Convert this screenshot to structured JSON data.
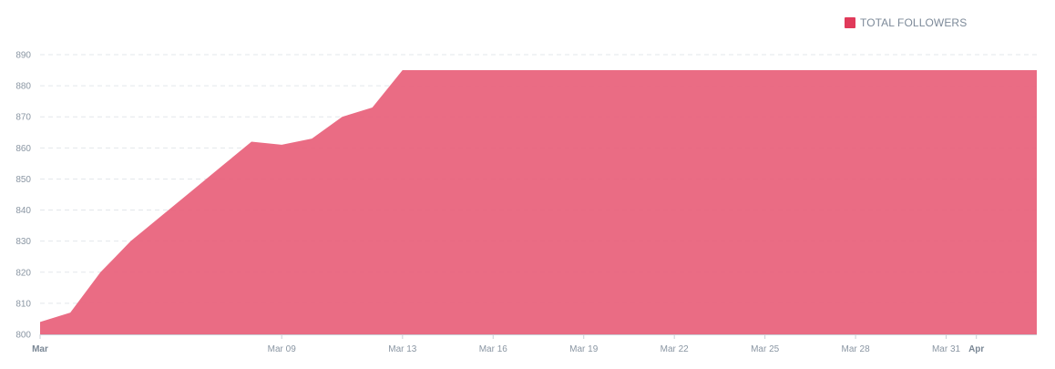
{
  "chart_data": {
    "type": "area",
    "title": "",
    "xlabel": "",
    "ylabel": "",
    "ylim": [
      800,
      890
    ],
    "y_ticks": [
      800,
      810,
      820,
      830,
      840,
      850,
      860,
      870,
      880,
      890
    ],
    "grid": "horizontal dashed",
    "legend_position": "top-right",
    "x_range": [
      "2019-03-01",
      "2019-04-03"
    ],
    "x_ticks": [
      {
        "date": "2019-03-01",
        "label": "Mar",
        "major": true
      },
      {
        "date": "2019-03-09",
        "label": "Mar 09",
        "major": false
      },
      {
        "date": "2019-03-13",
        "label": "Mar 13",
        "major": false
      },
      {
        "date": "2019-03-16",
        "label": "Mar 16",
        "major": false
      },
      {
        "date": "2019-03-19",
        "label": "Mar 19",
        "major": false
      },
      {
        "date": "2019-03-22",
        "label": "Mar 22",
        "major": false
      },
      {
        "date": "2019-03-25",
        "label": "Mar 25",
        "major": false
      },
      {
        "date": "2019-03-28",
        "label": "Mar 28",
        "major": false
      },
      {
        "date": "2019-03-31",
        "label": "Mar 31",
        "major": false
      },
      {
        "date": "2019-04-01",
        "label": "Apr",
        "major": true
      }
    ],
    "series": [
      {
        "name": "TOTAL FOLLOWERS",
        "color": "#e8607a",
        "legend_color": "#e03a5a",
        "points": [
          {
            "x": "2019-03-01",
            "y": 804
          },
          {
            "x": "2019-03-02",
            "y": 807
          },
          {
            "x": "2019-03-03",
            "y": 820
          },
          {
            "x": "2019-03-04",
            "y": 830
          },
          {
            "x": "2019-03-05",
            "y": 838
          },
          {
            "x": "2019-03-06",
            "y": 846
          },
          {
            "x": "2019-03-07",
            "y": 854
          },
          {
            "x": "2019-03-08",
            "y": 862
          },
          {
            "x": "2019-03-09",
            "y": 861
          },
          {
            "x": "2019-03-10",
            "y": 863
          },
          {
            "x": "2019-03-11",
            "y": 870
          },
          {
            "x": "2019-03-12",
            "y": 873
          },
          {
            "x": "2019-03-13",
            "y": 885
          },
          {
            "x": "2019-03-14",
            "y": 885
          },
          {
            "x": "2019-03-15",
            "y": 885
          },
          {
            "x": "2019-03-16",
            "y": 885
          },
          {
            "x": "2019-03-17",
            "y": 885
          },
          {
            "x": "2019-03-18",
            "y": 885
          },
          {
            "x": "2019-03-19",
            "y": 885
          },
          {
            "x": "2019-03-20",
            "y": 885
          },
          {
            "x": "2019-03-21",
            "y": 885
          },
          {
            "x": "2019-03-22",
            "y": 885
          },
          {
            "x": "2019-03-23",
            "y": 885
          },
          {
            "x": "2019-03-24",
            "y": 885
          },
          {
            "x": "2019-03-25",
            "y": 885
          },
          {
            "x": "2019-03-26",
            "y": 885
          },
          {
            "x": "2019-03-27",
            "y": 885
          },
          {
            "x": "2019-03-28",
            "y": 885
          },
          {
            "x": "2019-03-29",
            "y": 885
          },
          {
            "x": "2019-03-30",
            "y": 885
          },
          {
            "x": "2019-03-31",
            "y": 885
          },
          {
            "x": "2019-04-01",
            "y": 885
          },
          {
            "x": "2019-04-02",
            "y": 885
          },
          {
            "x": "2019-04-03",
            "y": 885
          }
        ]
      }
    ]
  }
}
